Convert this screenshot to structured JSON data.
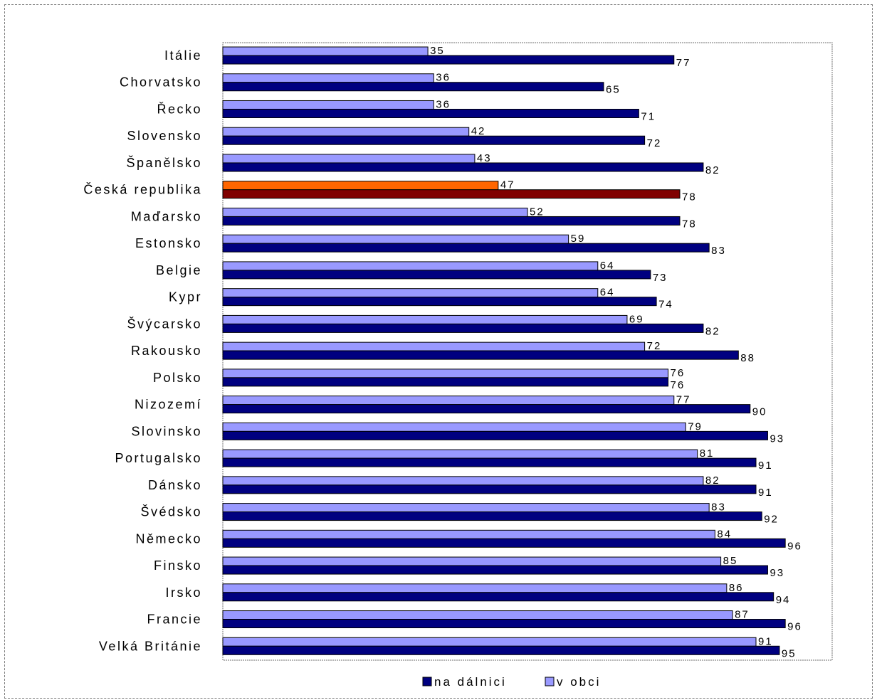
{
  "chart_data": {
    "type": "bar",
    "orientation": "horizontal",
    "categories": [
      "Itálie",
      "Chorvatsko",
      "Řecko",
      "Slovensko",
      "Španělsko",
      "Česká republika",
      "Maďarsko",
      "Estonsko",
      "Belgie",
      "Kypr",
      "Švýcarsko",
      "Rakousko",
      "Polsko",
      "Nizozemí",
      "Slovinsko",
      "Portugalsko",
      "Dánsko",
      "Švédsko",
      "Německo",
      "Finsko",
      "Irsko",
      "Francie",
      "Velká Británie"
    ],
    "series": [
      {
        "name": "v obci",
        "values": [
          35,
          36,
          36,
          42,
          43,
          47,
          52,
          59,
          64,
          64,
          69,
          72,
          76,
          77,
          79,
          81,
          82,
          83,
          84,
          85,
          86,
          87,
          91
        ]
      },
      {
        "name": "na dálnici",
        "values": [
          77,
          65,
          71,
          72,
          82,
          78,
          78,
          83,
          73,
          74,
          82,
          88,
          76,
          90,
          93,
          91,
          91,
          92,
          96,
          93,
          94,
          96,
          95
        ]
      }
    ],
    "highlight_category": "Česká republika",
    "xlim": [
      0,
      104
    ],
    "grid": false,
    "legend_position": "bottom",
    "legend_order": [
      "na dálnici",
      "v obci"
    ],
    "colors": {
      "v obci": "#9999ff",
      "na dálnici": "#000080",
      "v obci_highlight": "#ff6600",
      "na dálnici_highlight": "#800000"
    }
  }
}
